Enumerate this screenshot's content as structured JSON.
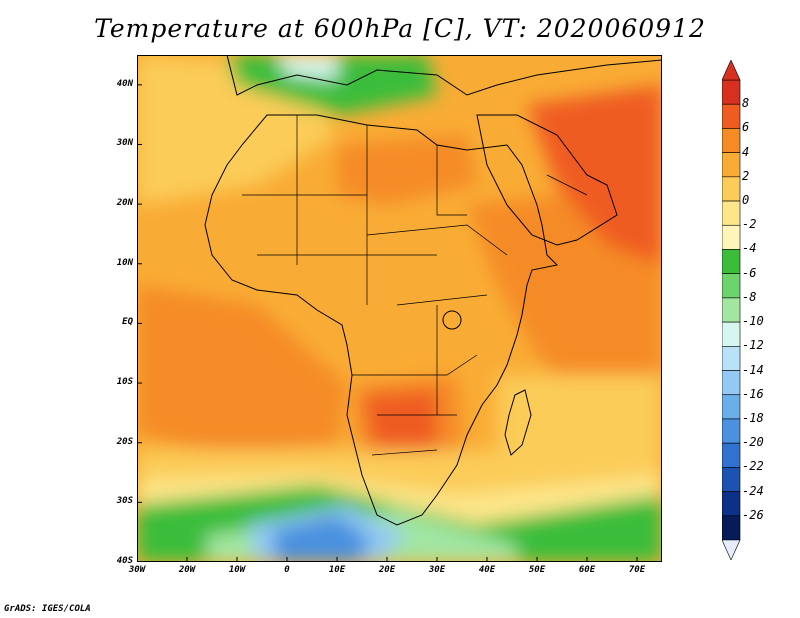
{
  "title": "Temperature at 600hPa [C], VT: 2020060912",
  "credit": "GrADS: IGES/COLA",
  "map": {
    "lat_labels": [
      "40N",
      "30N",
      "20N",
      "10N",
      "EQ",
      "10S",
      "20S",
      "30S",
      "40S"
    ],
    "lon_labels": [
      "30W",
      "20W",
      "10W",
      "0",
      "10E",
      "20E",
      "30E",
      "40E",
      "50E",
      "60E",
      "70E"
    ],
    "lat_range": [
      -40,
      45
    ],
    "lon_range": [
      -30,
      75
    ]
  },
  "colorbar": {
    "labels": [
      "8",
      "6",
      "4",
      "2",
      "0",
      "-2",
      "-4",
      "-6",
      "-8",
      "-10",
      "-12",
      "-14",
      "-16",
      "-18",
      "-20",
      "-22",
      "-24",
      "-26"
    ],
    "colors": [
      "#d7301f",
      "#ef5b21",
      "#f58b25",
      "#f9ac35",
      "#fbcc59",
      "#fde68a",
      "#fff5b8",
      "#3bbd3b",
      "#6dd36d",
      "#a2e6a2",
      "#d8f6f0",
      "#b9e1f7",
      "#93c9f2",
      "#6aaeea",
      "#4a91df",
      "#2f72cf",
      "#1c52b2",
      "#0b3288",
      "#071a5a"
    ]
  }
}
